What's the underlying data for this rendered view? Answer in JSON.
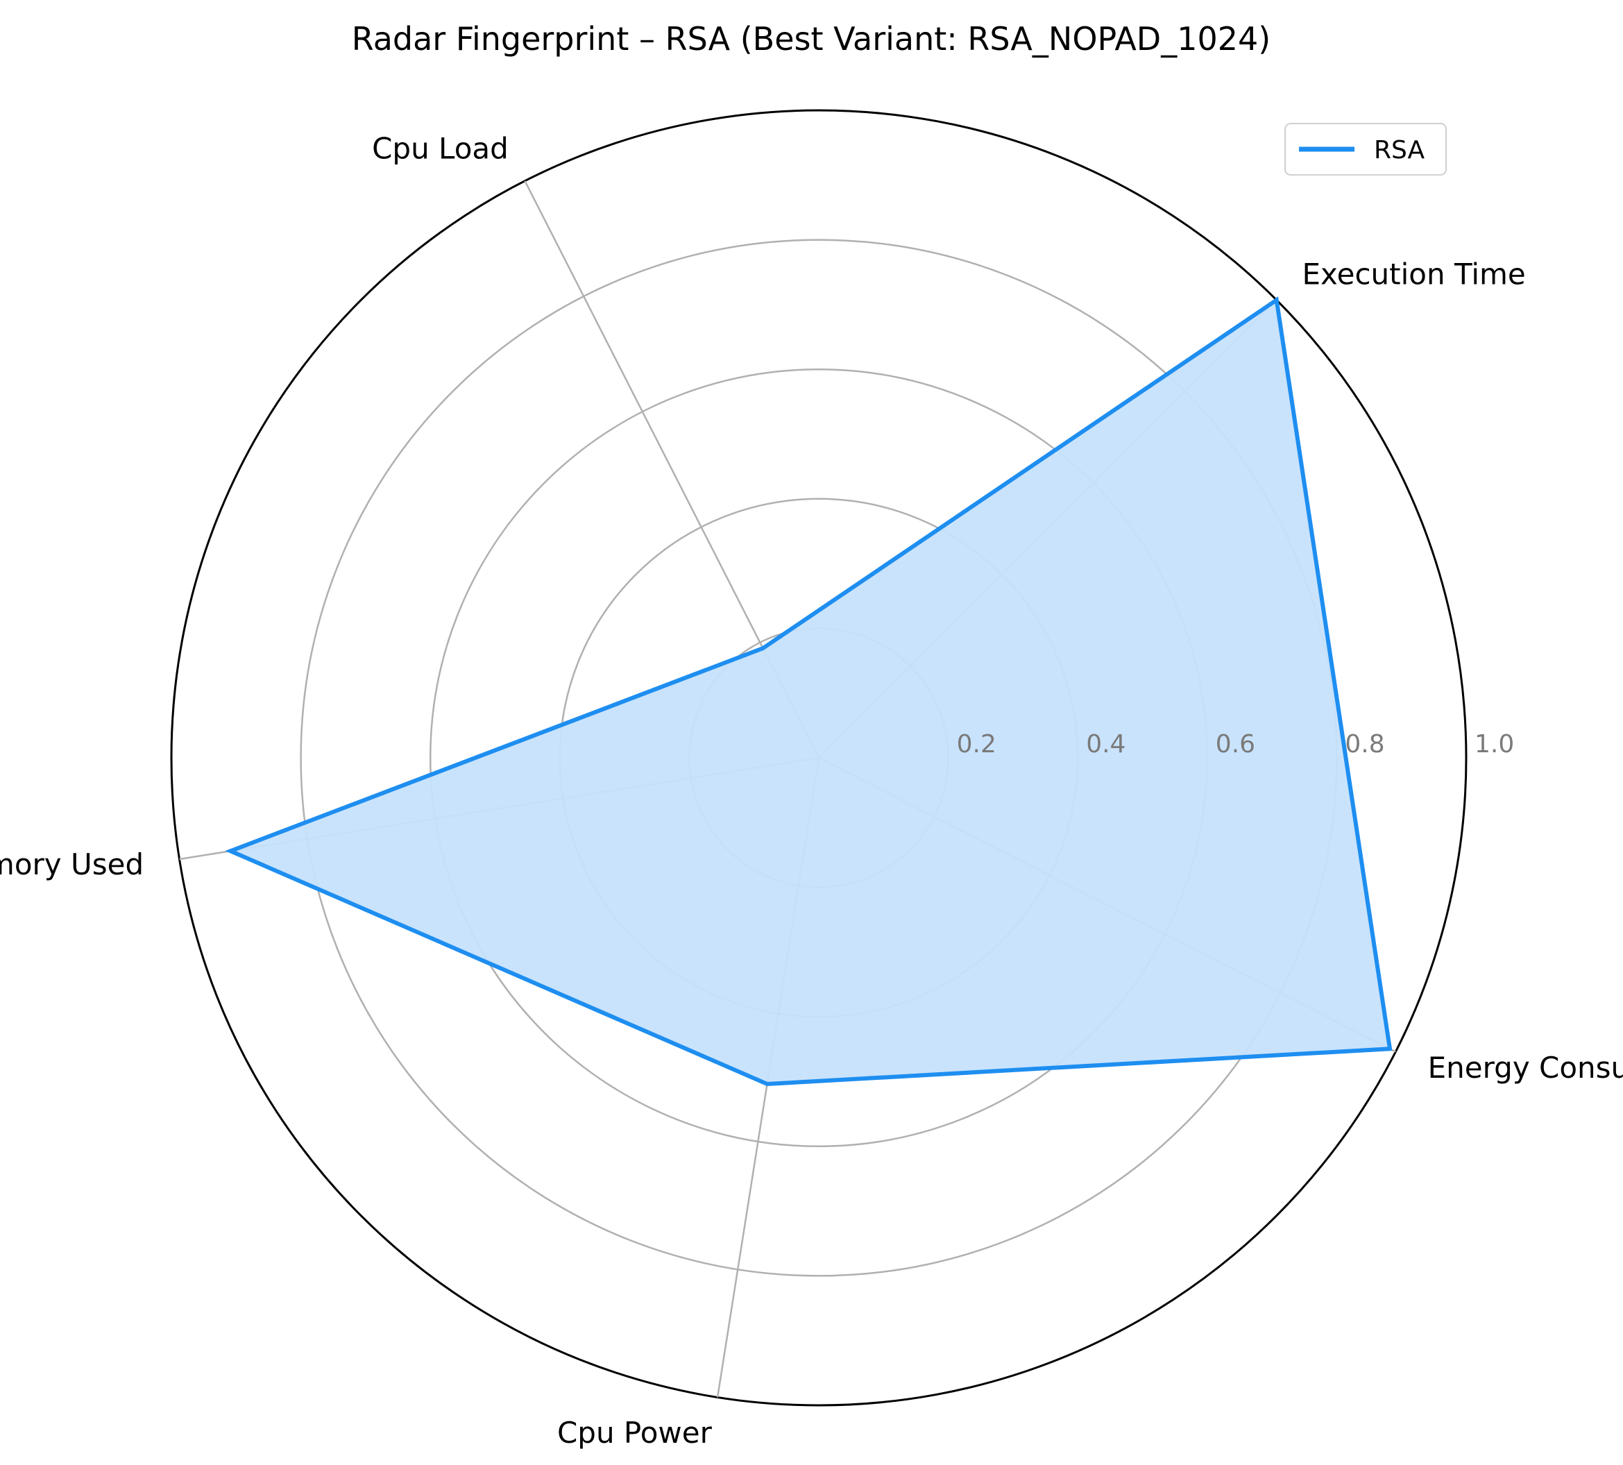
{
  "chart_data": {
    "type": "radar",
    "title": "Radar Fingerprint – RSA (Best Variant: RSA_NOPAD_1024)",
    "axes": [
      "Execution Time",
      "Cpu Load",
      "Memory Used",
      "Cpu Power",
      "Energy Consumption"
    ],
    "angles_deg": [
      45,
      117,
      189,
      261,
      333
    ],
    "rlim": [
      0,
      1.0
    ],
    "rticks": [
      0.2,
      0.4,
      0.6,
      0.8,
      1.0
    ],
    "rtick_labels": [
      "0.2",
      "0.4",
      "0.6",
      "0.8",
      "1.0"
    ],
    "grid": true,
    "legend": {
      "position": "top-right",
      "entries": [
        "RSA"
      ]
    },
    "series": [
      {
        "name": "RSA",
        "values": [
          1.0,
          0.19,
          0.92,
          0.51,
          0.99
        ],
        "color": "#1e8ef0",
        "fill_color": "#c6e2fc"
      }
    ]
  }
}
